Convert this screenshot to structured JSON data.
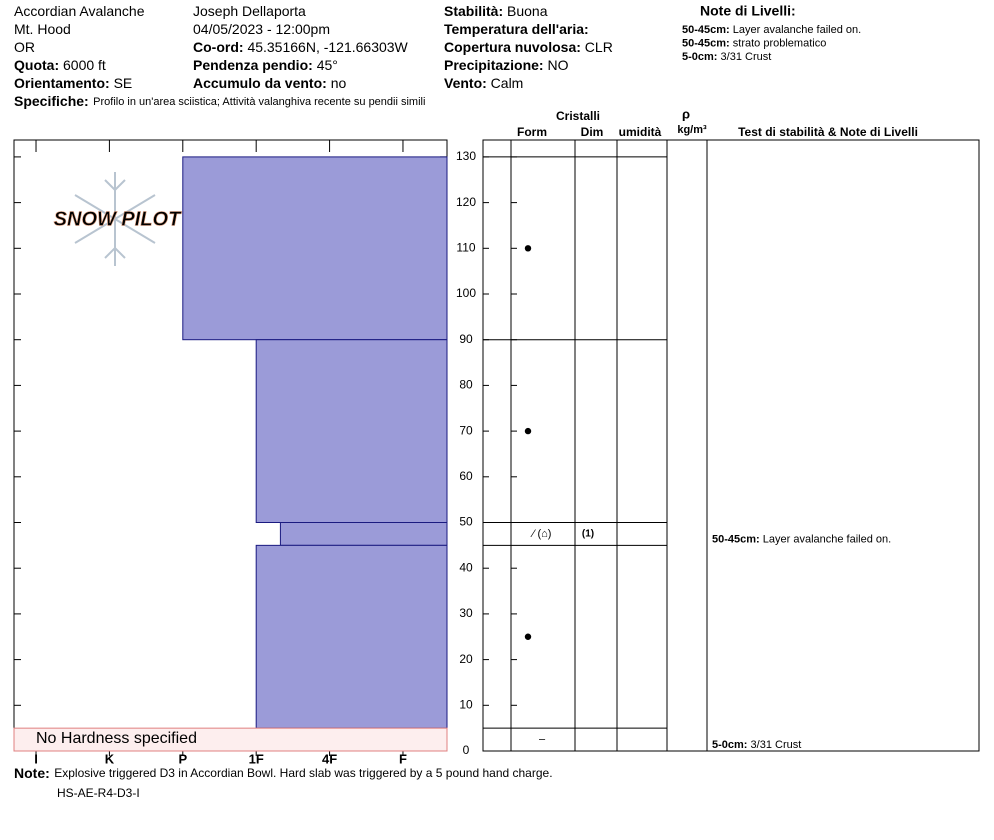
{
  "header": {
    "col1": [
      {
        "value": "Accordian Avalanche"
      },
      {
        "value": "Mt. Hood"
      },
      {
        "value": "OR"
      },
      {
        "label": "Quota:",
        "value": "6000 ft"
      },
      {
        "label": "Orientamento:",
        "value": "SE"
      }
    ],
    "col2": [
      {
        "value": "Joseph Dellaporta"
      },
      {
        "value": "04/05/2023 - 12:00pm"
      },
      {
        "label": "Co-ord:",
        "value": "45.35166N, -121.66303W"
      },
      {
        "label": "Pendenza pendio:",
        "value": "45°"
      },
      {
        "label": "Accumulo da vento:",
        "value": "no"
      }
    ],
    "col3": [
      {
        "label": "Stabilità:",
        "value": "Buona"
      },
      {
        "label": "Temperatura dell'aria:"
      },
      {
        "label": "Copertura nuvolosa:",
        "value": "CLR"
      },
      {
        "label": "Precipitazione:",
        "value": "NO"
      },
      {
        "label": "Vento:",
        "value": "Calm"
      }
    ],
    "notes_title": "Note di Livelli:",
    "notes": [
      {
        "label": "50-45cm:",
        "value": "Layer avalanche failed on."
      },
      {
        "label": "50-45cm:",
        "value": "strato problematico"
      },
      {
        "label": "5-0cm:",
        "value": "3/31 Crust"
      }
    ],
    "specifiche": {
      "label": "Specifiche:",
      "value": "Profilo in un'area sciistica; Attività valanghiva recente su pendii simili"
    }
  },
  "logo": "SNOW PILOT",
  "columns": {
    "cristalli": "Cristalli",
    "form": "Form",
    "dim": "Dim",
    "umidita": "umidità",
    "rho": "ρ",
    "density_unit": "kg/m³",
    "tests": "Test di stabilità & Note di Livelli"
  },
  "chart_data": {
    "type": "bar",
    "ylim": [
      0,
      133.7
    ],
    "yticks": [
      0,
      10,
      20,
      30,
      40,
      50,
      60,
      70,
      80,
      90,
      100,
      110,
      120,
      130
    ],
    "xlim": [
      -0.3,
      5.6
    ],
    "xticks": [
      {
        "value": 0,
        "label": "I"
      },
      {
        "value": 1,
        "label": "K"
      },
      {
        "value": 2,
        "label": "P"
      },
      {
        "value": 3,
        "label": "1F"
      },
      {
        "value": 4,
        "label": "4F"
      },
      {
        "value": 5,
        "label": "F"
      }
    ],
    "color": "#9b9bd8",
    "layers": [
      {
        "top": 130,
        "bottom": 90,
        "hardness": 2
      },
      {
        "top": 90,
        "bottom": 50,
        "hardness": 3
      },
      {
        "top": 50,
        "bottom": 45,
        "hardness": 3.33,
        "form": "⁄ (⌂)",
        "dim": "(1)",
        "note": {
          "label": "50-45cm:",
          "value": "Layer avalanche failed on."
        }
      },
      {
        "top": 45,
        "bottom": 5,
        "hardness": 3
      },
      {
        "top": 5,
        "bottom": 0,
        "no_hardness": "No Hardness specified",
        "form": "–",
        "note": {
          "label": "5-0cm:",
          "value": "3/31 Crust"
        }
      }
    ],
    "grains": [
      {
        "depth": 110
      },
      {
        "depth": 70
      },
      {
        "depth": 25
      }
    ]
  },
  "footer": {
    "label": "Note:",
    "value": "Explosive triggered D3 in Accordian Bowl. Hard slab was triggered by a 5 pound hand charge.",
    "code": "HS-AE-R4-D3-I"
  }
}
